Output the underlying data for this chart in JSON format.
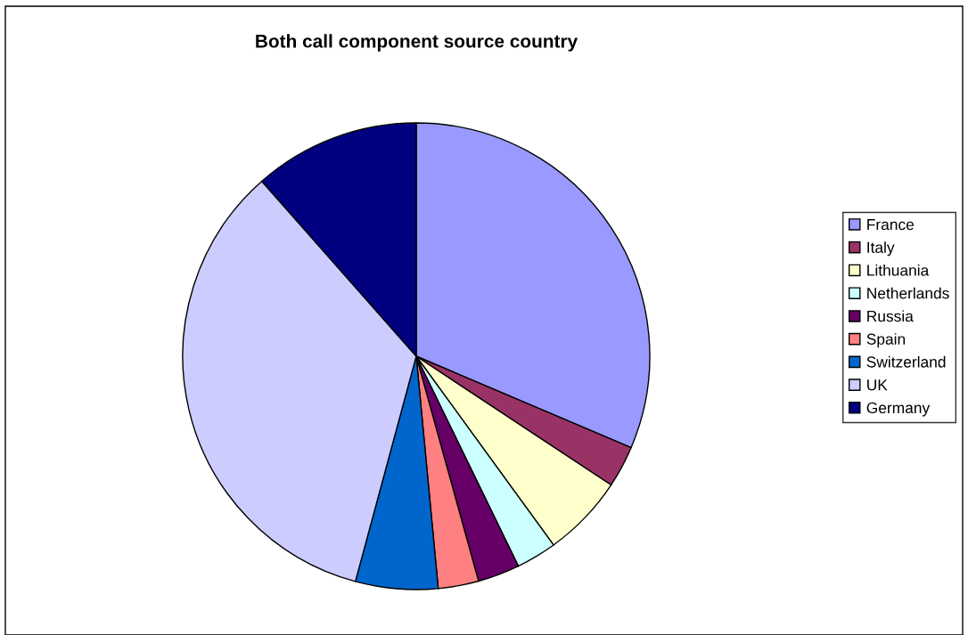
{
  "chart_data": {
    "type": "pie",
    "title": "Both call component source country",
    "categories": [
      "France",
      "Italy",
      "Lithuania",
      "Netherlands",
      "Russia",
      "Spain",
      "Switzerland",
      "UK",
      "Germany"
    ],
    "values": [
      31.4,
      2.9,
      5.7,
      2.8,
      2.9,
      2.8,
      5.7,
      34.3,
      11.5
    ],
    "colors": [
      "#9999ff",
      "#993366",
      "#ffffcc",
      "#ccffff",
      "#660066",
      "#ff8080",
      "#0066cc",
      "#ccccff",
      "#000080"
    ],
    "legend": "right"
  }
}
